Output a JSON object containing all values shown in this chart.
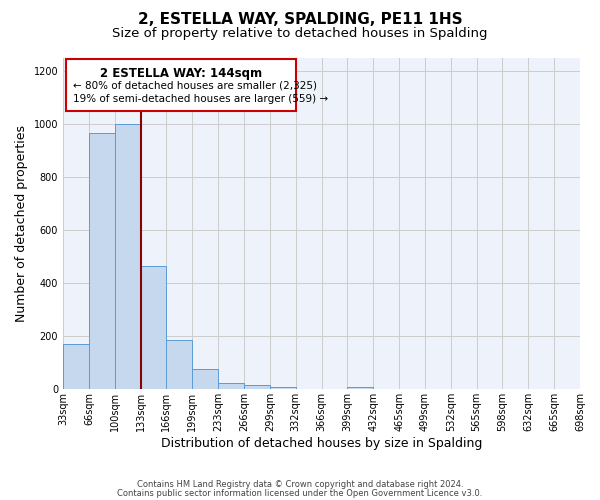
{
  "title": "2, ESTELLA WAY, SPALDING, PE11 1HS",
  "subtitle": "Size of property relative to detached houses in Spalding",
  "xlabel": "Distribution of detached houses by size in Spalding",
  "ylabel": "Number of detached properties",
  "bar_values": [
    170,
    965,
    1000,
    465,
    185,
    75,
    25,
    15,
    10,
    0,
    0,
    10,
    0,
    0,
    0,
    0,
    0,
    0,
    0,
    0
  ],
  "bin_labels": [
    "33sqm",
    "66sqm",
    "100sqm",
    "133sqm",
    "166sqm",
    "199sqm",
    "233sqm",
    "266sqm",
    "299sqm",
    "332sqm",
    "366sqm",
    "399sqm",
    "432sqm",
    "465sqm",
    "499sqm",
    "532sqm",
    "565sqm",
    "598sqm",
    "632sqm",
    "665sqm",
    "698sqm"
  ],
  "bar_color": "#c5d8ed",
  "bar_edge_color": "#5b9bd5",
  "grid_color": "#cccccc",
  "bg_color": "#eef2fa",
  "vline_x": 3.0,
  "vline_color": "#8b0000",
  "annotation_title": "2 ESTELLA WAY: 144sqm",
  "annotation_line1": "← 80% of detached houses are smaller (2,325)",
  "annotation_line2": "19% of semi-detached houses are larger (559) →",
  "annotation_box_color": "#cc0000",
  "footer_line1": "Contains HM Land Registry data © Crown copyright and database right 2024.",
  "footer_line2": "Contains public sector information licensed under the Open Government Licence v3.0.",
  "ylim": [
    0,
    1250
  ],
  "yticks": [
    0,
    200,
    400,
    600,
    800,
    1000,
    1200
  ],
  "title_fontsize": 11,
  "subtitle_fontsize": 9.5,
  "axis_label_fontsize": 9,
  "tick_fontsize": 7,
  "footer_fontsize": 6,
  "annot_title_fontsize": 8.5,
  "annot_text_fontsize": 7.5
}
